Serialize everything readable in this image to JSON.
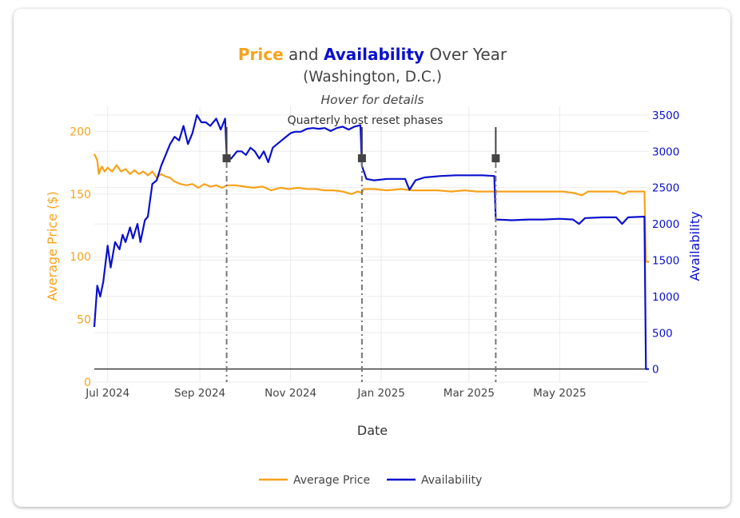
{
  "chart_data": {
    "type": "line",
    "title": {
      "part1": "Price",
      "part2": " and ",
      "part3": "Availability",
      "part4": " Over Year",
      "line2": "(Washington, D.C.)"
    },
    "subtitle": "Hover for details",
    "annotation": "Quarterly host reset phases",
    "xlabel": "Date",
    "ylabel_left": "Average Price ($)",
    "ylabel_right": "Availability",
    "x_ticks": [
      "Jul 2024",
      "Sep 2024",
      "Nov 2024",
      "Jan 2025",
      "Mar 2025",
      "May 2025"
    ],
    "x_tick_dates": [
      "2024-07-01",
      "2024-09-01",
      "2024-11-01",
      "2025-01-01",
      "2025-03-01",
      "2025-05-01"
    ],
    "x_range": [
      "2024-06-22",
      "2025-06-30"
    ],
    "y_left_ticks": [
      "0",
      "50",
      "100",
      "150",
      "200"
    ],
    "y_left_range": [
      0,
      220
    ],
    "y_right_ticks": [
      "0",
      "500",
      "1000",
      "1500",
      "2000",
      "2500",
      "3000",
      "3500"
    ],
    "y_right_range": [
      -180,
      3620
    ],
    "grid": true,
    "legend_position": "bottom",
    "colors": {
      "price": "#f7a21b",
      "availability": "#0a10cc",
      "marker": "#444444"
    },
    "reset_dates": [
      "2024-09-19",
      "2024-12-19",
      "2025-03-19"
    ],
    "series": [
      {
        "name": "Average Price",
        "axis": "left",
        "points": [
          [
            "2024-06-22",
            182
          ],
          [
            "2024-06-24",
            177
          ],
          [
            "2024-06-25",
            166
          ],
          [
            "2024-06-27",
            172
          ],
          [
            "2024-06-29",
            168
          ],
          [
            "2024-07-01",
            171
          ],
          [
            "2024-07-04",
            168
          ],
          [
            "2024-07-07",
            173
          ],
          [
            "2024-07-10",
            168
          ],
          [
            "2024-07-13",
            170
          ],
          [
            "2024-07-16",
            166
          ],
          [
            "2024-07-19",
            169
          ],
          [
            "2024-07-22",
            166
          ],
          [
            "2024-07-25",
            168
          ],
          [
            "2024-07-28",
            165
          ],
          [
            "2024-07-31",
            168
          ],
          [
            "2024-08-03",
            163
          ],
          [
            "2024-08-06",
            166
          ],
          [
            "2024-08-09",
            164
          ],
          [
            "2024-08-12",
            163
          ],
          [
            "2024-08-15",
            160
          ],
          [
            "2024-08-19",
            158
          ],
          [
            "2024-08-23",
            157
          ],
          [
            "2024-08-27",
            158
          ],
          [
            "2024-08-31",
            155
          ],
          [
            "2024-09-04",
            158
          ],
          [
            "2024-09-08",
            156
          ],
          [
            "2024-09-12",
            157
          ],
          [
            "2024-09-16",
            155
          ],
          [
            "2024-09-19",
            157
          ],
          [
            "2024-09-25",
            157
          ],
          [
            "2024-10-01",
            156
          ],
          [
            "2024-10-07",
            155
          ],
          [
            "2024-10-13",
            156
          ],
          [
            "2024-10-19",
            153
          ],
          [
            "2024-10-25",
            155
          ],
          [
            "2024-10-31",
            154
          ],
          [
            "2024-11-06",
            155
          ],
          [
            "2024-11-12",
            154
          ],
          [
            "2024-11-18",
            154
          ],
          [
            "2024-11-24",
            153
          ],
          [
            "2024-11-30",
            153
          ],
          [
            "2024-12-06",
            152
          ],
          [
            "2024-12-12",
            150
          ],
          [
            "2024-12-16",
            152
          ],
          [
            "2024-12-19",
            151
          ],
          [
            "2024-12-20",
            154
          ],
          [
            "2024-12-27",
            154
          ],
          [
            "2025-01-05",
            153
          ],
          [
            "2025-01-14",
            154
          ],
          [
            "2025-01-22",
            153
          ],
          [
            "2025-01-30",
            153
          ],
          [
            "2025-02-08",
            153
          ],
          [
            "2025-02-17",
            152
          ],
          [
            "2025-02-26",
            153
          ],
          [
            "2025-03-06",
            152
          ],
          [
            "2025-03-14",
            152
          ],
          [
            "2025-03-19",
            152
          ],
          [
            "2025-03-28",
            152
          ],
          [
            "2025-04-06",
            152
          ],
          [
            "2025-04-15",
            152
          ],
          [
            "2025-04-24",
            152
          ],
          [
            "2025-05-03",
            152
          ],
          [
            "2025-05-10",
            151
          ],
          [
            "2025-05-16",
            149
          ],
          [
            "2025-05-20",
            152
          ],
          [
            "2025-05-30",
            152
          ],
          [
            "2025-06-08",
            152
          ],
          [
            "2025-06-13",
            150
          ],
          [
            "2025-06-16",
            152
          ],
          [
            "2025-06-27",
            152
          ],
          [
            "2025-06-28",
            96
          ],
          [
            "2025-06-30",
            96
          ]
        ]
      },
      {
        "name": "Availability",
        "axis": "right",
        "points": [
          [
            "2024-06-22",
            580
          ],
          [
            "2024-06-24",
            1150
          ],
          [
            "2024-06-26",
            1000
          ],
          [
            "2024-06-28",
            1200
          ],
          [
            "2024-07-01",
            1700
          ],
          [
            "2024-07-03",
            1400
          ],
          [
            "2024-07-06",
            1750
          ],
          [
            "2024-07-09",
            1650
          ],
          [
            "2024-07-11",
            1850
          ],
          [
            "2024-07-13",
            1750
          ],
          [
            "2024-07-16",
            1950
          ],
          [
            "2024-07-18",
            1800
          ],
          [
            "2024-07-21",
            2000
          ],
          [
            "2024-07-23",
            1750
          ],
          [
            "2024-07-26",
            2050
          ],
          [
            "2024-07-28",
            2100
          ],
          [
            "2024-07-31",
            2550
          ],
          [
            "2024-08-03",
            2600
          ],
          [
            "2024-08-06",
            2800
          ],
          [
            "2024-08-09",
            2950
          ],
          [
            "2024-08-12",
            3100
          ],
          [
            "2024-08-15",
            3200
          ],
          [
            "2024-08-18",
            3150
          ],
          [
            "2024-08-21",
            3350
          ],
          [
            "2024-08-24",
            3100
          ],
          [
            "2024-08-27",
            3250
          ],
          [
            "2024-08-30",
            3500
          ],
          [
            "2024-09-02",
            3400
          ],
          [
            "2024-09-05",
            3400
          ],
          [
            "2024-09-08",
            3350
          ],
          [
            "2024-09-12",
            3450
          ],
          [
            "2024-09-15",
            3300
          ],
          [
            "2024-09-18",
            3450
          ],
          [
            "2024-09-19",
            2950
          ],
          [
            "2024-09-22",
            2900
          ],
          [
            "2024-09-26",
            3000
          ],
          [
            "2024-09-29",
            3000
          ],
          [
            "2024-10-02",
            2950
          ],
          [
            "2024-10-05",
            3050
          ],
          [
            "2024-10-08",
            3000
          ],
          [
            "2024-10-11",
            2900
          ],
          [
            "2024-10-14",
            3000
          ],
          [
            "2024-10-17",
            2850
          ],
          [
            "2024-10-20",
            3050
          ],
          [
            "2024-10-23",
            3100
          ],
          [
            "2024-10-26",
            3150
          ],
          [
            "2024-10-29",
            3200
          ],
          [
            "2024-11-01",
            3250
          ],
          [
            "2024-11-04",
            3270
          ],
          [
            "2024-11-08",
            3270
          ],
          [
            "2024-11-12",
            3310
          ],
          [
            "2024-11-16",
            3320
          ],
          [
            "2024-11-20",
            3310
          ],
          [
            "2024-11-24",
            3320
          ],
          [
            "2024-11-28",
            3280
          ],
          [
            "2024-12-02",
            3320
          ],
          [
            "2024-12-06",
            3340
          ],
          [
            "2024-12-10",
            3300
          ],
          [
            "2024-12-14",
            3340
          ],
          [
            "2024-12-18",
            3360
          ],
          [
            "2024-12-19",
            2800
          ],
          [
            "2024-12-22",
            2620
          ],
          [
            "2024-12-27",
            2600
          ],
          [
            "2025-01-05",
            2620
          ],
          [
            "2025-01-12",
            2620
          ],
          [
            "2025-01-17",
            2620
          ],
          [
            "2025-01-20",
            2470
          ],
          [
            "2025-01-24",
            2600
          ],
          [
            "2025-01-30",
            2640
          ],
          [
            "2025-02-10",
            2660
          ],
          [
            "2025-02-20",
            2670
          ],
          [
            "2025-03-01",
            2670
          ],
          [
            "2025-03-10",
            2670
          ],
          [
            "2025-03-18",
            2660
          ],
          [
            "2025-03-19",
            2060
          ],
          [
            "2025-03-30",
            2050
          ],
          [
            "2025-04-10",
            2060
          ],
          [
            "2025-04-20",
            2060
          ],
          [
            "2025-05-01",
            2070
          ],
          [
            "2025-05-10",
            2060
          ],
          [
            "2025-05-14",
            2000
          ],
          [
            "2025-05-18",
            2080
          ],
          [
            "2025-05-30",
            2090
          ],
          [
            "2025-06-08",
            2090
          ],
          [
            "2025-06-12",
            2000
          ],
          [
            "2025-06-16",
            2090
          ],
          [
            "2025-06-27",
            2100
          ],
          [
            "2025-06-28",
            0
          ],
          [
            "2025-06-30",
            0
          ]
        ]
      }
    ]
  }
}
